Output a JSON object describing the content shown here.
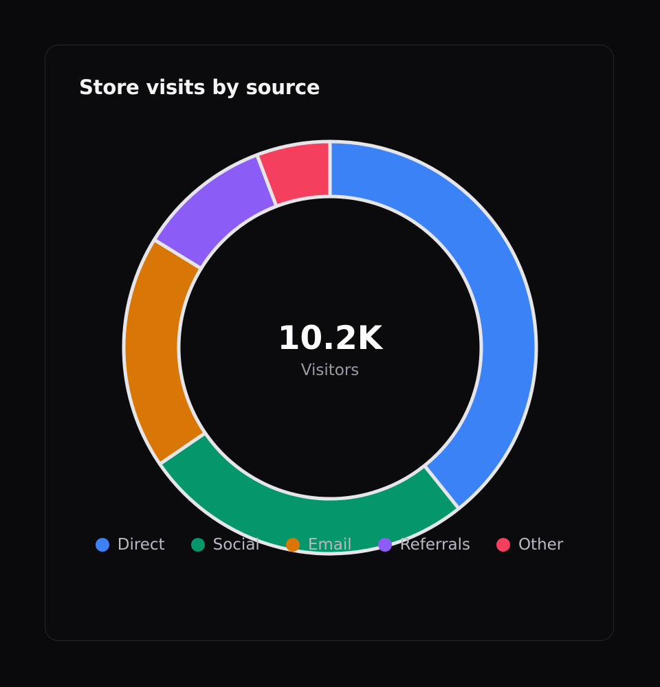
{
  "card": {
    "title": "Store visits by source"
  },
  "center": {
    "value": "10.2K",
    "label": "Visitors"
  },
  "chart_data": {
    "type": "pie",
    "variant": "donut",
    "title": "Store visits by source",
    "total_label": "10.2K",
    "total_caption": "Visitors",
    "categories": [
      "Direct",
      "Social",
      "Email",
      "Referrals",
      "Other"
    ],
    "values": [
      37.5,
      25.0,
      17.5,
      10.0,
      5.5
    ],
    "colors": [
      "#3b82f6",
      "#059669",
      "#d97706",
      "#8b5cf6",
      "#f43f5e"
    ],
    "legend": "bottom"
  },
  "colors": {
    "background": "#0a0a0c",
    "card": "#0b0b0d",
    "separator": "#e6e6ea"
  }
}
